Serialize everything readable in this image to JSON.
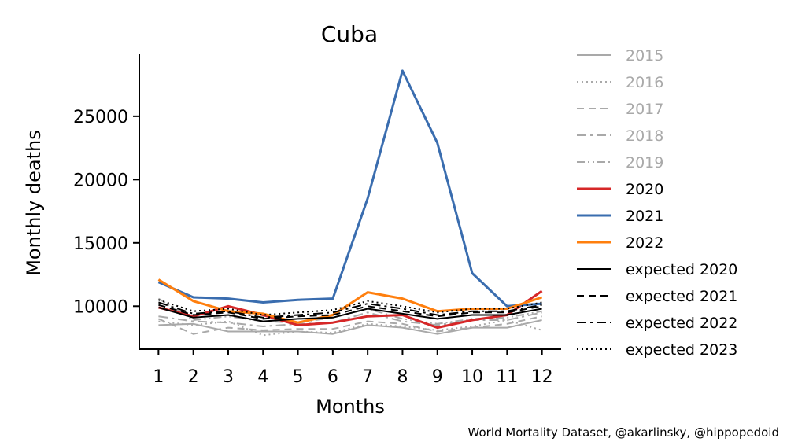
{
  "chart_data": {
    "type": "line",
    "title": "Cuba",
    "xlabel": "Months",
    "ylabel": "Monthly deaths",
    "credit": "World Mortality Dataset, @akarlinsky, @hippopedoid",
    "x": [
      1,
      2,
      3,
      4,
      5,
      6,
      7,
      8,
      9,
      10,
      11,
      12
    ],
    "x_tick_labels": [
      "1",
      "2",
      "3",
      "4",
      "5",
      "6",
      "7",
      "8",
      "9",
      "10",
      "11",
      "12"
    ],
    "y_ticks": [
      10000,
      15000,
      20000,
      25000
    ],
    "y_tick_labels": [
      "10000",
      "15000",
      "20000",
      "25000"
    ],
    "ylim": [
      6600,
      29900
    ],
    "xlim": [
      0.45,
      12.55
    ],
    "grid": false,
    "legend_position": "right, outside plot",
    "series": [
      {
        "name": "2015",
        "color": "#a9a9a9",
        "dash": "solid",
        "width": 2,
        "values": [
          8500,
          8600,
          8000,
          8000,
          8000,
          7800,
          8500,
          8300,
          7800,
          8300,
          8300,
          8900
        ]
      },
      {
        "name": "2016",
        "color": "#a9a9a9",
        "dash": "dotted",
        "width": 2,
        "values": [
          8800,
          8500,
          8800,
          7700,
          8000,
          7900,
          8600,
          8400,
          8100,
          8400,
          8900,
          8100
        ]
      },
      {
        "name": "2017",
        "color": "#a9a9a9",
        "dash": "dashed",
        "width": 2,
        "values": [
          9000,
          7800,
          8300,
          8100,
          8200,
          8200,
          8800,
          8600,
          8000,
          8300,
          8600,
          9200
        ]
      },
      {
        "name": "2018",
        "color": "#a9a9a9",
        "dash": "dashdot",
        "width": 2,
        "values": [
          9200,
          8800,
          8700,
          8400,
          8600,
          8700,
          9500,
          8800,
          8500,
          8900,
          8900,
          9500
        ]
      },
      {
        "name": "2019",
        "color": "#a9a9a9",
        "dash": "dashdotdot",
        "width": 2,
        "values": [
          10600,
          8900,
          9200,
          8800,
          8700,
          9100,
          9800,
          9000,
          8600,
          9000,
          9100,
          9600
        ]
      },
      {
        "name": "2020",
        "color": "#d62728",
        "dash": "solid",
        "width": 3,
        "values": [
          9900,
          9200,
          10000,
          9300,
          8500,
          8700,
          9200,
          9300,
          8300,
          8900,
          9300,
          11200
        ]
      },
      {
        "name": "2021",
        "color": "#3a6daf",
        "dash": "solid",
        "width": 3,
        "values": [
          11900,
          10700,
          10600,
          10300,
          10500,
          10600,
          18500,
          28600,
          22900,
          12600,
          10000,
          10200
        ]
      },
      {
        "name": "2022",
        "color": "#ff7f0e",
        "dash": "solid",
        "width": 3,
        "values": [
          12100,
          10400,
          9600,
          9400,
          8700,
          9300,
          11100,
          10600,
          9600,
          9800,
          9800,
          10700
        ]
      },
      {
        "name": "expected 2020",
        "color": "#000000",
        "dash": "solid",
        "width": 2,
        "values": [
          9900,
          9100,
          9300,
          8800,
          9000,
          9100,
          9800,
          9400,
          9000,
          9300,
          9300,
          9800
        ]
      },
      {
        "name": "expected 2021",
        "color": "#000000",
        "dash": "dashed",
        "width": 2,
        "values": [
          10100,
          9300,
          9500,
          9000,
          9200,
          9300,
          10000,
          9600,
          9200,
          9500,
          9500,
          10000
        ]
      },
      {
        "name": "expected 2022",
        "color": "#000000",
        "dash": "dashdot",
        "width": 2,
        "values": [
          10300,
          9400,
          9600,
          9100,
          9300,
          9500,
          10200,
          9800,
          9300,
          9600,
          9600,
          10100
        ]
      },
      {
        "name": "expected 2023",
        "color": "#000000",
        "dash": "dotted",
        "width": 2,
        "values": [
          10500,
          9600,
          9800,
          9300,
          9500,
          9700,
          10400,
          10000,
          9500,
          9800,
          9800,
          10300
        ]
      }
    ],
    "legend_text_colors": {
      "past_years": "#a9a9a9",
      "other": "#000000"
    }
  }
}
